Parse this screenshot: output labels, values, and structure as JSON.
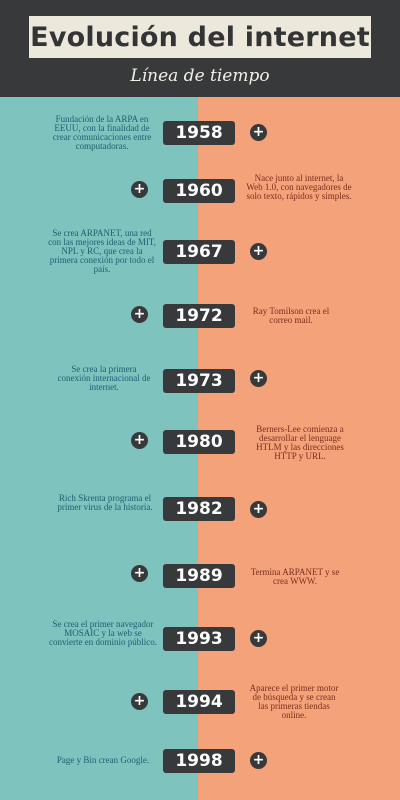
{
  "header": {
    "title": "Evolución del internet",
    "subtitle": "Línea de tiempo"
  },
  "colors": {
    "dark": "#38393b",
    "teal": "#7fc3bf",
    "salmon": "#f4a27a",
    "title_box": "#ece8db"
  },
  "timeline": [
    {
      "year": "1958",
      "side": "left",
      "text": "Fundación de la ARPA en EEUU, con la finalidad de crear comunicaciones entre computadoras."
    },
    {
      "year": "1960",
      "side": "right",
      "text": "Nace junto al internet, la Web 1.0, con navegadores de solo texto, rápidos y simples."
    },
    {
      "year": "1967",
      "side": "left",
      "text": "Se crea ARPANET, una red con las mejores ideas de MIT, NPL y RC, que crea la primera conexión por todo el país."
    },
    {
      "year": "1972",
      "side": "right",
      "text": "Ray Tomilson crea el correo mail."
    },
    {
      "year": "1973",
      "side": "left",
      "text": "Se crea la primera conexión internacional de internet."
    },
    {
      "year": "1980",
      "side": "right",
      "text": "Berners-Lee comienza a desarrollar el lenguage HTLM y las direcciones HTTP y URL."
    },
    {
      "year": "1982",
      "side": "left",
      "text": "Rich Skrenta programa el primer virus de la historia."
    },
    {
      "year": "1989",
      "side": "right",
      "text": "Termina ARPANET y se crea WWW."
    },
    {
      "year": "1993",
      "side": "left",
      "text": "Se crea el primer navegador MOSAIC y la web se convierte en dominio público."
    },
    {
      "year": "1994",
      "side": "right",
      "text": "Aparece el primer motor de búsqueda y se crean las primeras tiendas online."
    },
    {
      "year": "1998",
      "side": "left",
      "text": "Page y Bin crean Google."
    }
  ],
  "plus_symbol": "+"
}
